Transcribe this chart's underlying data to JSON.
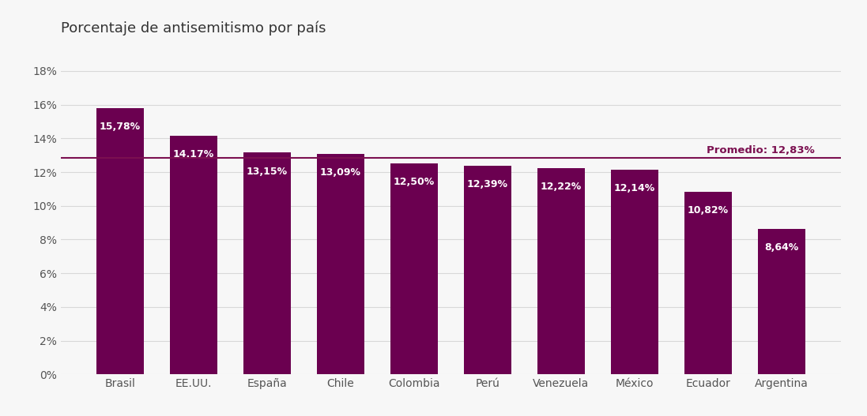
{
  "title": "Porcentaje de antisemitismo por país",
  "categories": [
    "Brasil",
    "EE.UU.",
    "España",
    "Chile",
    "Colombia",
    "Perú",
    "Venezuela",
    "México",
    "Ecuador",
    "Argentina"
  ],
  "values": [
    15.78,
    14.17,
    13.15,
    13.09,
    12.5,
    12.39,
    12.22,
    12.14,
    10.82,
    8.64
  ],
  "labels": [
    "15,78%",
    "14,17%",
    "13,15%",
    "13,09%",
    "12,50%",
    "12,39%",
    "12,22%",
    "12,14%",
    "10,82%",
    "8,64%"
  ],
  "bar_color": "#6B0050",
  "background_color": "#f7f7f7",
  "avg_value": 12.83,
  "avg_label": "Promedio: 12,83%",
  "avg_color": "#7B1050",
  "title_fontsize": 13,
  "label_fontsize": 9,
  "tick_fontsize": 10,
  "ylim": [
    0,
    19
  ],
  "yticks": [
    0,
    2,
    4,
    6,
    8,
    10,
    12,
    14,
    16,
    18
  ],
  "ytick_labels": [
    "0%",
    "2%",
    "4%",
    "6%",
    "8%",
    "10%",
    "12%",
    "14%",
    "16%",
    "18%"
  ]
}
